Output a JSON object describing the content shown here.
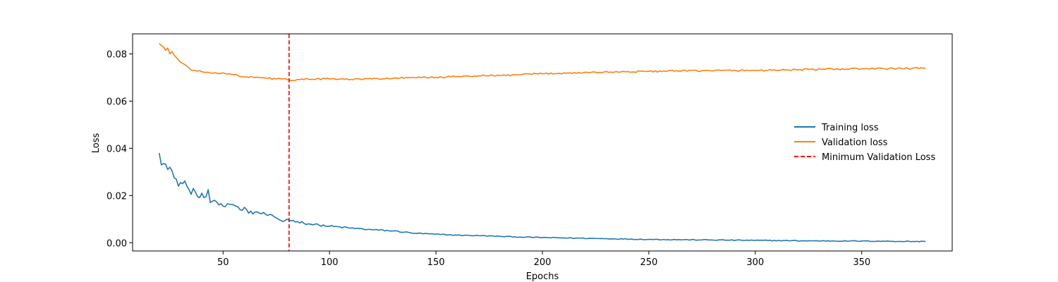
{
  "chart_data": {
    "type": "line",
    "title": "",
    "xlabel": "Epochs",
    "ylabel": "Loss",
    "xlim": [
      7.5,
      392.5
    ],
    "ylim": [
      -0.0035,
      0.0885
    ],
    "xticks": [
      50,
      100,
      150,
      200,
      250,
      300,
      350
    ],
    "xtick_labels": [
      "50",
      "100",
      "150",
      "200",
      "250",
      "300",
      "350"
    ],
    "yticks": [
      0.0,
      0.02,
      0.04,
      0.06,
      0.08
    ],
    "ytick_labels": [
      "0.00",
      "0.02",
      "0.04",
      "0.06",
      "0.08"
    ],
    "grid": false,
    "legend_position": "center-right",
    "x_range": [
      20,
      380
    ],
    "series": [
      {
        "name": "Training loss",
        "color": "#1f77b4",
        "anchors": [
          [
            20,
            0.038
          ],
          [
            21,
            0.033
          ],
          [
            22,
            0.0335
          ],
          [
            23,
            0.0333
          ],
          [
            24,
            0.031
          ],
          [
            25,
            0.032
          ],
          [
            26,
            0.0305
          ],
          [
            27,
            0.0275
          ],
          [
            28,
            0.027
          ],
          [
            29,
            0.024
          ],
          [
            30,
            0.0255
          ],
          [
            31,
            0.025
          ],
          [
            32,
            0.0262
          ],
          [
            33,
            0.024
          ],
          [
            34,
            0.0225
          ],
          [
            35,
            0.0205
          ],
          [
            36,
            0.023
          ],
          [
            37,
            0.0215
          ],
          [
            38,
            0.0195
          ],
          [
            40,
            0.021
          ],
          [
            42,
            0.0195
          ],
          [
            43,
            0.0225
          ],
          [
            44,
            0.017
          ],
          [
            46,
            0.018
          ],
          [
            48,
            0.016
          ],
          [
            50,
            0.0155
          ],
          [
            52,
            0.0165
          ],
          [
            55,
            0.016
          ],
          [
            58,
            0.014
          ],
          [
            60,
            0.015
          ],
          [
            62,
            0.0125
          ],
          [
            65,
            0.013
          ],
          [
            70,
            0.012
          ],
          [
            75,
            0.0105
          ],
          [
            78,
            0.009
          ],
          [
            80,
            0.01
          ],
          [
            81,
            0.0095
          ],
          [
            85,
            0.009
          ],
          [
            90,
            0.008
          ],
          [
            95,
            0.0075
          ],
          [
            100,
            0.007
          ],
          [
            110,
            0.0062
          ],
          [
            120,
            0.0055
          ],
          [
            130,
            0.005
          ],
          [
            140,
            0.004
          ],
          [
            150,
            0.0036
          ],
          [
            160,
            0.0032
          ],
          [
            170,
            0.003
          ],
          [
            180,
            0.0027
          ],
          [
            190,
            0.0024
          ],
          [
            200,
            0.0022
          ],
          [
            225,
            0.0018
          ],
          [
            250,
            0.0014
          ],
          [
            275,
            0.0012
          ],
          [
            300,
            0.001
          ],
          [
            325,
            0.0008
          ],
          [
            350,
            0.0007
          ],
          [
            380,
            0.0005
          ]
        ]
      },
      {
        "name": "Validation loss",
        "color": "#ff7f0e",
        "anchors": [
          [
            20,
            0.0845
          ],
          [
            21,
            0.0835
          ],
          [
            22,
            0.083
          ],
          [
            23,
            0.0815
          ],
          [
            24,
            0.0825
          ],
          [
            25,
            0.08
          ],
          [
            26,
            0.081
          ],
          [
            27,
            0.0795
          ],
          [
            28,
            0.0785
          ],
          [
            29,
            0.0775
          ],
          [
            30,
            0.0765
          ],
          [
            32,
            0.0755
          ],
          [
            34,
            0.074
          ],
          [
            36,
            0.073
          ],
          [
            38,
            0.0727
          ],
          [
            40,
            0.0725
          ],
          [
            42,
            0.0722
          ],
          [
            45,
            0.0718
          ],
          [
            50,
            0.072
          ],
          [
            55,
            0.0712
          ],
          [
            60,
            0.0702
          ],
          [
            65,
            0.07
          ],
          [
            70,
            0.0697
          ],
          [
            75,
            0.0694
          ],
          [
            80,
            0.0692
          ],
          [
            81,
            0.0688
          ],
          [
            85,
            0.0692
          ],
          [
            90,
            0.0693
          ],
          [
            100,
            0.0694
          ],
          [
            110,
            0.0692
          ],
          [
            120,
            0.0694
          ],
          [
            130,
            0.0697
          ],
          [
            140,
            0.0699
          ],
          [
            150,
            0.0701
          ],
          [
            160,
            0.0704
          ],
          [
            170,
            0.0707
          ],
          [
            180,
            0.0708
          ],
          [
            190,
            0.0712
          ],
          [
            200,
            0.0716
          ],
          [
            225,
            0.0722
          ],
          [
            250,
            0.0726
          ],
          [
            275,
            0.0729
          ],
          [
            300,
            0.073
          ],
          [
            325,
            0.0734
          ],
          [
            350,
            0.0737
          ],
          [
            380,
            0.0739
          ]
        ]
      }
    ],
    "vline": {
      "name": "Minimum Validation Loss",
      "x": 81,
      "color": "#ff0000",
      "style": "dashed"
    },
    "legend": {
      "entries": [
        "Training loss",
        "Validation loss",
        "Minimum Validation Loss"
      ]
    }
  }
}
